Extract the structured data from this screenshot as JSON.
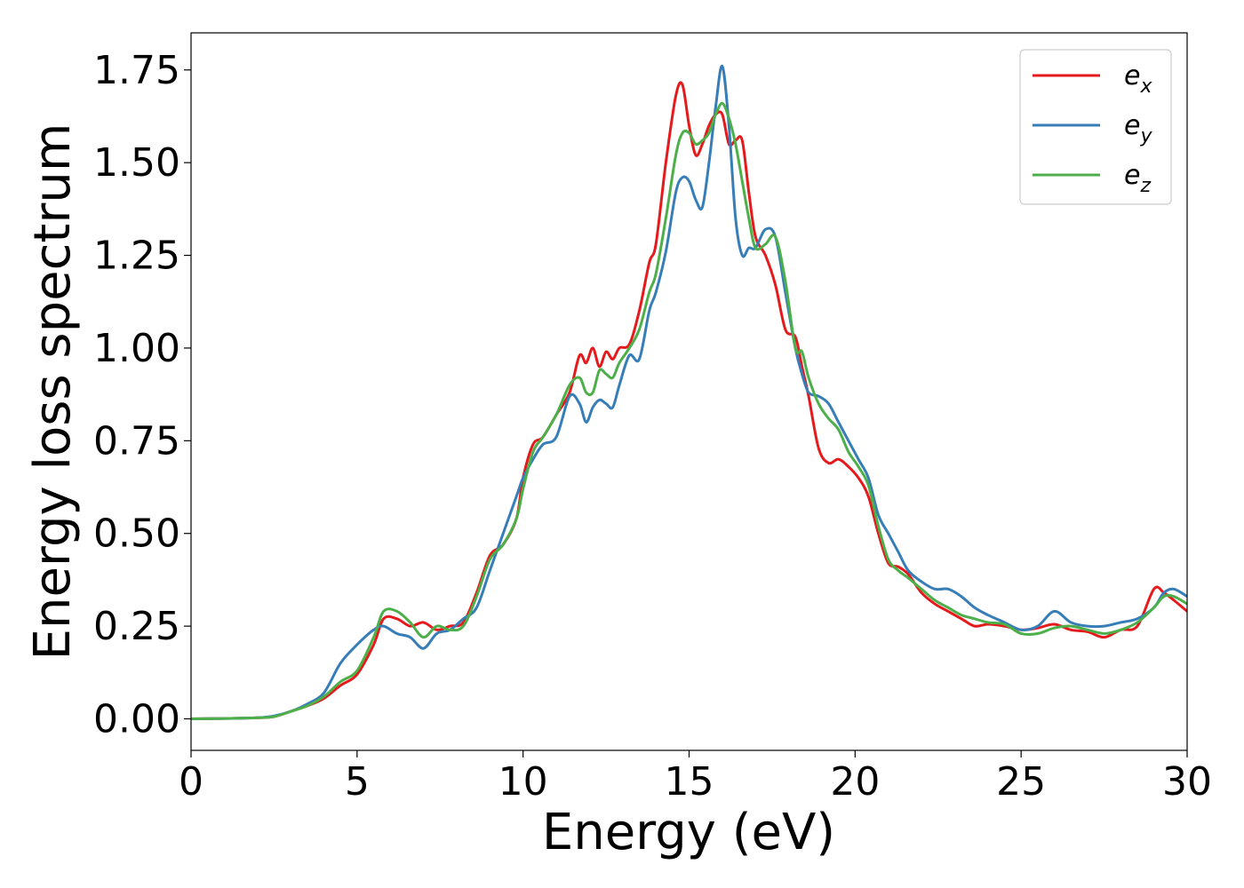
{
  "chart_data": {
    "type": "line",
    "xlabel": "Energy (eV)",
    "ylabel": "Energy loss spectrum",
    "xlim": [
      0,
      30
    ],
    "ylim": [
      -0.085,
      1.85
    ],
    "xticks": [
      0,
      5,
      10,
      15,
      20,
      25,
      30
    ],
    "xtick_labels": [
      "0",
      "5",
      "10",
      "15",
      "20",
      "25",
      "30"
    ],
    "yticks": [
      0.0,
      0.25,
      0.5,
      0.75,
      1.0,
      1.25,
      1.5,
      1.75
    ],
    "ytick_labels": [
      "0.00",
      "0.25",
      "0.50",
      "0.75",
      "1.00",
      "1.25",
      "1.50",
      "1.75"
    ],
    "grid": false,
    "legend_position": "top-right",
    "series": [
      {
        "name": "e_x",
        "label_main": "e",
        "label_sub": "x",
        "color": "#e41a1c",
        "x": [
          0,
          1,
          2,
          2.5,
          3,
          3.5,
          4,
          4.5,
          5,
          5.5,
          5.8,
          6.2,
          6.6,
          7.0,
          7.4,
          7.8,
          8.2,
          8.6,
          9.0,
          9.4,
          9.8,
          10.0,
          10.3,
          10.6,
          11.0,
          11.4,
          11.7,
          11.9,
          12.1,
          12.3,
          12.5,
          12.7,
          12.9,
          13.2,
          13.5,
          13.8,
          14.0,
          14.3,
          14.6,
          14.8,
          15.0,
          15.2,
          15.4,
          15.6,
          15.8,
          16.0,
          16.2,
          16.4,
          16.6,
          16.8,
          17.0,
          17.3,
          17.6,
          17.9,
          18.2,
          18.4,
          18.6,
          18.9,
          19.2,
          19.5,
          19.8,
          20.1,
          20.4,
          20.7,
          21.0,
          21.3,
          21.6,
          22.0,
          22.4,
          22.8,
          23.2,
          23.6,
          24.0,
          24.5,
          25.0,
          25.5,
          26.0,
          26.5,
          27.0,
          27.5,
          28.0,
          28.5,
          29.0,
          29.3,
          29.6,
          30.0
        ],
        "y": [
          0.0,
          0.001,
          0.003,
          0.006,
          0.02,
          0.035,
          0.055,
          0.09,
          0.12,
          0.2,
          0.27,
          0.27,
          0.25,
          0.26,
          0.24,
          0.25,
          0.26,
          0.34,
          0.44,
          0.47,
          0.54,
          0.65,
          0.74,
          0.76,
          0.82,
          0.88,
          0.98,
          0.96,
          1.0,
          0.95,
          0.99,
          0.97,
          1.0,
          1.01,
          1.1,
          1.23,
          1.28,
          1.5,
          1.68,
          1.71,
          1.6,
          1.52,
          1.55,
          1.6,
          1.63,
          1.63,
          1.55,
          1.56,
          1.56,
          1.42,
          1.3,
          1.25,
          1.17,
          1.05,
          1.03,
          0.95,
          0.87,
          0.73,
          0.69,
          0.7,
          0.68,
          0.65,
          0.6,
          0.5,
          0.42,
          0.41,
          0.39,
          0.34,
          0.31,
          0.29,
          0.27,
          0.25,
          0.255,
          0.25,
          0.24,
          0.245,
          0.255,
          0.24,
          0.235,
          0.22,
          0.24,
          0.25,
          0.35,
          0.34,
          0.32,
          0.29
        ]
      },
      {
        "name": "e_y",
        "label_main": "e",
        "label_sub": "y",
        "color": "#377eb8",
        "x": [
          0,
          1,
          2,
          2.5,
          3,
          3.5,
          4,
          4.5,
          5,
          5.5,
          5.8,
          6.2,
          6.6,
          7.0,
          7.4,
          7.8,
          8.2,
          8.6,
          9.0,
          9.4,
          9.8,
          10.0,
          10.3,
          10.6,
          11.0,
          11.4,
          11.7,
          11.9,
          12.1,
          12.3,
          12.5,
          12.7,
          12.9,
          13.2,
          13.5,
          13.8,
          14.0,
          14.3,
          14.6,
          14.8,
          15.0,
          15.2,
          15.4,
          15.6,
          15.8,
          16.0,
          16.2,
          16.4,
          16.6,
          16.8,
          17.0,
          17.3,
          17.6,
          17.9,
          18.2,
          18.4,
          18.6,
          18.9,
          19.2,
          19.5,
          19.8,
          20.1,
          20.4,
          20.7,
          21.0,
          21.3,
          21.6,
          22.0,
          22.4,
          22.8,
          23.2,
          23.6,
          24.0,
          24.5,
          25.0,
          25.5,
          26.0,
          26.5,
          27.0,
          27.5,
          28.0,
          28.5,
          29.0,
          29.3,
          29.6,
          30.0
        ],
        "y": [
          0.0,
          0.001,
          0.003,
          0.008,
          0.02,
          0.04,
          0.07,
          0.15,
          0.2,
          0.24,
          0.25,
          0.23,
          0.22,
          0.19,
          0.23,
          0.24,
          0.27,
          0.3,
          0.4,
          0.5,
          0.6,
          0.65,
          0.7,
          0.74,
          0.76,
          0.87,
          0.85,
          0.8,
          0.84,
          0.86,
          0.85,
          0.84,
          0.9,
          0.98,
          0.97,
          1.1,
          1.15,
          1.26,
          1.42,
          1.46,
          1.45,
          1.4,
          1.38,
          1.5,
          1.65,
          1.76,
          1.6,
          1.35,
          1.25,
          1.27,
          1.27,
          1.32,
          1.3,
          1.15,
          1.0,
          0.93,
          0.88,
          0.87,
          0.85,
          0.8,
          0.75,
          0.7,
          0.65,
          0.55,
          0.5,
          0.45,
          0.4,
          0.37,
          0.35,
          0.35,
          0.33,
          0.3,
          0.28,
          0.26,
          0.24,
          0.25,
          0.29,
          0.26,
          0.25,
          0.25,
          0.26,
          0.27,
          0.3,
          0.34,
          0.35,
          0.33
        ]
      },
      {
        "name": "e_z",
        "label_main": "e",
        "label_sub": "z",
        "color": "#4daf4a",
        "x": [
          0,
          1,
          2,
          2.5,
          3,
          3.5,
          4,
          4.5,
          5,
          5.5,
          5.8,
          6.2,
          6.6,
          7.0,
          7.4,
          7.8,
          8.2,
          8.6,
          9.0,
          9.4,
          9.8,
          10.0,
          10.3,
          10.6,
          11.0,
          11.4,
          11.7,
          11.9,
          12.1,
          12.3,
          12.5,
          12.7,
          12.9,
          13.2,
          13.5,
          13.8,
          14.0,
          14.3,
          14.6,
          14.8,
          15.0,
          15.2,
          15.4,
          15.6,
          15.8,
          16.0,
          16.2,
          16.4,
          16.6,
          16.8,
          17.0,
          17.3,
          17.6,
          17.9,
          18.2,
          18.4,
          18.6,
          18.9,
          19.2,
          19.5,
          19.8,
          20.1,
          20.4,
          20.7,
          21.0,
          21.3,
          21.6,
          22.0,
          22.4,
          22.8,
          23.2,
          23.6,
          24.0,
          24.5,
          25.0,
          25.5,
          26.0,
          26.5,
          27.0,
          27.5,
          28.0,
          28.5,
          29.0,
          29.3,
          29.6,
          30.0
        ],
        "y": [
          0.0,
          0.001,
          0.003,
          0.006,
          0.02,
          0.035,
          0.06,
          0.1,
          0.13,
          0.22,
          0.29,
          0.29,
          0.26,
          0.22,
          0.25,
          0.24,
          0.25,
          0.33,
          0.43,
          0.47,
          0.54,
          0.62,
          0.72,
          0.76,
          0.82,
          0.9,
          0.92,
          0.88,
          0.88,
          0.94,
          0.93,
          0.92,
          0.96,
          1.0,
          1.05,
          1.15,
          1.2,
          1.35,
          1.52,
          1.58,
          1.58,
          1.55,
          1.56,
          1.58,
          1.63,
          1.66,
          1.62,
          1.55,
          1.45,
          1.35,
          1.27,
          1.28,
          1.3,
          1.18,
          1.0,
          0.99,
          0.92,
          0.85,
          0.81,
          0.78,
          0.72,
          0.68,
          0.63,
          0.52,
          0.43,
          0.4,
          0.38,
          0.35,
          0.32,
          0.3,
          0.28,
          0.27,
          0.26,
          0.255,
          0.23,
          0.23,
          0.245,
          0.25,
          0.24,
          0.23,
          0.24,
          0.26,
          0.3,
          0.33,
          0.33,
          0.31
        ]
      }
    ]
  }
}
